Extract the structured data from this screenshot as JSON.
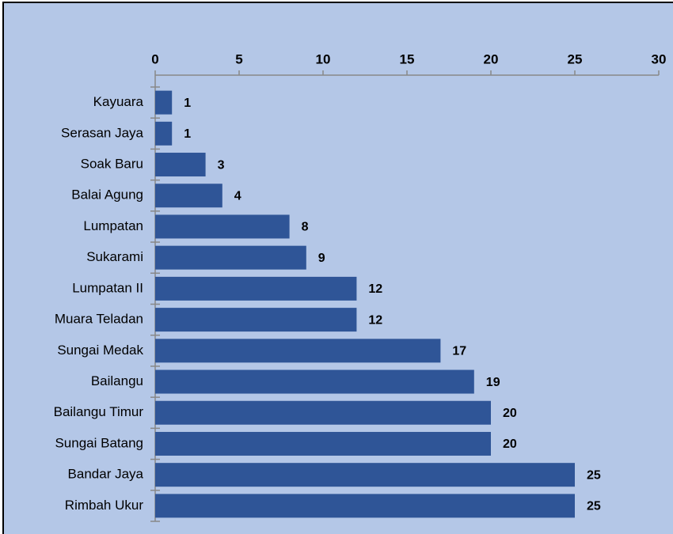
{
  "chart_data": {
    "type": "bar",
    "orientation": "horizontal",
    "categories": [
      "Kayuara",
      "Serasan Jaya",
      "Soak Baru",
      "Balai Agung",
      "Lumpatan",
      "Sukarami",
      "Lumpatan II",
      "Muara Teladan",
      "Sungai Medak",
      "Bailangu",
      "Bailangu Timur",
      "Sungai Batang",
      "Bandar Jaya",
      "Rimbah Ukur"
    ],
    "values": [
      1,
      1,
      3,
      4,
      8,
      9,
      12,
      12,
      17,
      19,
      20,
      20,
      25,
      25
    ],
    "color": "#2f5597",
    "xlim": [
      0,
      30
    ],
    "xticks": [
      0,
      5,
      10,
      15,
      20,
      25,
      30
    ]
  }
}
